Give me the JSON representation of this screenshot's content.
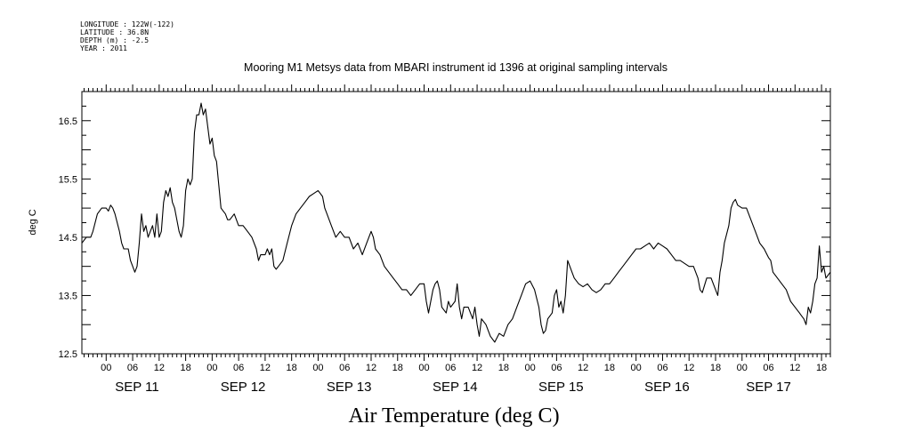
{
  "header": {
    "longitude": "LONGITUDE : 122W(-122)",
    "latitude": "LATITUDE : 36.8N",
    "depth": "DEPTH (m) : -2.5",
    "year": "YEAR : 2011"
  },
  "chart_data": {
    "type": "line",
    "title": "Mooring M1 Metsys data from MBARI instrument id 1396 at original sampling intervals",
    "xlabel": "Air Temperature (deg C)",
    "ylabel": "deg C",
    "ylim": [
      12.5,
      17.0
    ],
    "xlim_hours": [
      -5.5,
      164
    ],
    "yticks": [
      12.5,
      13.5,
      14.5,
      15.5,
      16.5
    ],
    "ytick_labels": [
      "12.5",
      "13.5",
      "14.5",
      "15.5",
      "16.5"
    ],
    "xticks_hours": [
      0,
      6,
      12,
      18,
      24,
      30,
      36,
      42,
      48,
      54,
      60,
      66,
      72,
      78,
      84,
      90,
      96,
      102,
      108,
      114,
      120,
      126,
      132,
      138,
      144,
      150,
      156,
      162
    ],
    "xtick_labels": [
      "00",
      "06",
      "12",
      "18",
      "00",
      "06",
      "12",
      "18",
      "00",
      "06",
      "12",
      "18",
      "00",
      "06",
      "12",
      "18",
      "00",
      "06",
      "12",
      "18",
      "00",
      "06",
      "12",
      "18",
      "00",
      "06",
      "12",
      "18"
    ],
    "day_labels": [
      {
        "hour": 7,
        "text": "SEP 11"
      },
      {
        "hour": 31,
        "text": "SEP 12"
      },
      {
        "hour": 55,
        "text": "SEP 13"
      },
      {
        "hour": 79,
        "text": "SEP 14"
      },
      {
        "hour": 103,
        "text": "SEP 15"
      },
      {
        "hour": 127,
        "text": "SEP 16"
      },
      {
        "hour": 150,
        "text": "SEP 17"
      }
    ],
    "grid": false,
    "series": [
      {
        "color": "#000000",
        "points": [
          [
            -5.5,
            14.4
          ],
          [
            -4.5,
            14.5
          ],
          [
            -3.5,
            14.5
          ],
          [
            -3,
            14.6
          ],
          [
            -2,
            14.9
          ],
          [
            -1,
            15.0
          ],
          [
            0,
            15.0
          ],
          [
            0.5,
            14.95
          ],
          [
            1,
            15.05
          ],
          [
            1.5,
            15.0
          ],
          [
            2,
            14.9
          ],
          [
            3,
            14.6
          ],
          [
            3.5,
            14.4
          ],
          [
            4,
            14.3
          ],
          [
            5,
            14.3
          ],
          [
            5.5,
            14.1
          ],
          [
            6,
            14.0
          ],
          [
            6.5,
            13.9
          ],
          [
            7,
            14.0
          ],
          [
            7.5,
            14.4
          ],
          [
            8,
            14.9
          ],
          [
            8.5,
            14.6
          ],
          [
            9,
            14.7
          ],
          [
            9.5,
            14.5
          ],
          [
            10,
            14.6
          ],
          [
            10.5,
            14.7
          ],
          [
            11,
            14.5
          ],
          [
            11.5,
            14.9
          ],
          [
            12,
            14.5
          ],
          [
            12.5,
            14.6
          ],
          [
            13,
            15.1
          ],
          [
            13.5,
            15.3
          ],
          [
            14,
            15.2
          ],
          [
            14.5,
            15.35
          ],
          [
            15,
            15.1
          ],
          [
            15.5,
            15.0
          ],
          [
            16,
            14.8
          ],
          [
            16.5,
            14.6
          ],
          [
            17,
            14.5
          ],
          [
            17.5,
            14.7
          ],
          [
            18,
            15.3
          ],
          [
            18.5,
            15.5
          ],
          [
            19,
            15.4
          ],
          [
            19.5,
            15.5
          ],
          [
            20,
            16.3
          ],
          [
            20.5,
            16.6
          ],
          [
            21,
            16.6
          ],
          [
            21.5,
            16.8
          ],
          [
            22,
            16.6
          ],
          [
            22.5,
            16.7
          ],
          [
            23,
            16.4
          ],
          [
            23.5,
            16.1
          ],
          [
            24,
            16.2
          ],
          [
            24.5,
            15.9
          ],
          [
            25,
            15.8
          ],
          [
            25.5,
            15.4
          ],
          [
            26,
            15.0
          ],
          [
            26.5,
            14.95
          ],
          [
            27,
            14.9
          ],
          [
            27.5,
            14.8
          ],
          [
            28,
            14.8
          ],
          [
            29,
            14.9
          ],
          [
            30,
            14.7
          ],
          [
            31,
            14.7
          ],
          [
            32,
            14.6
          ],
          [
            33,
            14.5
          ],
          [
            34,
            14.3
          ],
          [
            34.5,
            14.1
          ],
          [
            35,
            14.2
          ],
          [
            36,
            14.2
          ],
          [
            36.5,
            14.3
          ],
          [
            37,
            14.2
          ],
          [
            37.5,
            14.3
          ],
          [
            38,
            14.0
          ],
          [
            38.5,
            13.95
          ],
          [
            39,
            14.0
          ],
          [
            40,
            14.1
          ],
          [
            41,
            14.4
          ],
          [
            42,
            14.7
          ],
          [
            43,
            14.9
          ],
          [
            44,
            15.0
          ],
          [
            45,
            15.1
          ],
          [
            46,
            15.2
          ],
          [
            47,
            15.25
          ],
          [
            48,
            15.3
          ],
          [
            49,
            15.2
          ],
          [
            49.5,
            15.0
          ],
          [
            50,
            14.9
          ],
          [
            51,
            14.7
          ],
          [
            52,
            14.5
          ],
          [
            53,
            14.6
          ],
          [
            54,
            14.5
          ],
          [
            55,
            14.5
          ],
          [
            56,
            14.3
          ],
          [
            57,
            14.4
          ],
          [
            58,
            14.2
          ],
          [
            59,
            14.4
          ],
          [
            60,
            14.6
          ],
          [
            60.5,
            14.5
          ],
          [
            61,
            14.3
          ],
          [
            62,
            14.2
          ],
          [
            63,
            14.0
          ],
          [
            64,
            13.9
          ],
          [
            65,
            13.8
          ],
          [
            66,
            13.7
          ],
          [
            67,
            13.6
          ],
          [
            68,
            13.6
          ],
          [
            69,
            13.5
          ],
          [
            70,
            13.6
          ],
          [
            71,
            13.7
          ],
          [
            72,
            13.7
          ],
          [
            72.5,
            13.4
          ],
          [
            73,
            13.2
          ],
          [
            74,
            13.6
          ],
          [
            74.5,
            13.7
          ],
          [
            75,
            13.75
          ],
          [
            75.5,
            13.6
          ],
          [
            76,
            13.3
          ],
          [
            77,
            13.2
          ],
          [
            77.5,
            13.4
          ],
          [
            78,
            13.3
          ],
          [
            79,
            13.4
          ],
          [
            79.5,
            13.7
          ],
          [
            80,
            13.3
          ],
          [
            80.5,
            13.1
          ],
          [
            81,
            13.3
          ],
          [
            82,
            13.3
          ],
          [
            83,
            13.1
          ],
          [
            83.5,
            13.3
          ],
          [
            84,
            13.0
          ],
          [
            84.5,
            12.8
          ],
          [
            85,
            13.1
          ],
          [
            86,
            13.0
          ],
          [
            87,
            12.8
          ],
          [
            88,
            12.7
          ],
          [
            89,
            12.85
          ],
          [
            90,
            12.8
          ],
          [
            91,
            13.0
          ],
          [
            92,
            13.1
          ],
          [
            93,
            13.3
          ],
          [
            94,
            13.5
          ],
          [
            95,
            13.7
          ],
          [
            96,
            13.75
          ],
          [
            97,
            13.6
          ],
          [
            98,
            13.3
          ],
          [
            98.5,
            13.0
          ],
          [
            99,
            12.85
          ],
          [
            99.5,
            12.9
          ],
          [
            100,
            13.1
          ],
          [
            101,
            13.2
          ],
          [
            101.5,
            13.5
          ],
          [
            102,
            13.6
          ],
          [
            102.5,
            13.3
          ],
          [
            103,
            13.4
          ],
          [
            103.5,
            13.2
          ],
          [
            104,
            13.5
          ],
          [
            104.5,
            14.1
          ],
          [
            105,
            14.0
          ],
          [
            105.5,
            13.9
          ],
          [
            106,
            13.8
          ],
          [
            107,
            13.7
          ],
          [
            108,
            13.65
          ],
          [
            109,
            13.7
          ],
          [
            110,
            13.6
          ],
          [
            111,
            13.55
          ],
          [
            112,
            13.6
          ],
          [
            113,
            13.7
          ],
          [
            114,
            13.7
          ],
          [
            115,
            13.8
          ],
          [
            116,
            13.9
          ],
          [
            117,
            14.0
          ],
          [
            118,
            14.1
          ],
          [
            119,
            14.2
          ],
          [
            120,
            14.3
          ],
          [
            121,
            14.3
          ],
          [
            122,
            14.35
          ],
          [
            123,
            14.4
          ],
          [
            124,
            14.3
          ],
          [
            125,
            14.4
          ],
          [
            126,
            14.35
          ],
          [
            127,
            14.3
          ],
          [
            128,
            14.2
          ],
          [
            129,
            14.1
          ],
          [
            130,
            14.1
          ],
          [
            131,
            14.05
          ],
          [
            132,
            14.0
          ],
          [
            133,
            14.0
          ],
          [
            134,
            13.8
          ],
          [
            134.5,
            13.6
          ],
          [
            135,
            13.55
          ],
          [
            136,
            13.8
          ],
          [
            137,
            13.8
          ],
          [
            138,
            13.6
          ],
          [
            138.5,
            13.5
          ],
          [
            139,
            13.9
          ],
          [
            139.5,
            14.1
          ],
          [
            140,
            14.4
          ],
          [
            141,
            14.7
          ],
          [
            141.5,
            15.0
          ],
          [
            142,
            15.1
          ],
          [
            142.5,
            15.15
          ],
          [
            143,
            15.05
          ],
          [
            144,
            15.0
          ],
          [
            145,
            15.0
          ],
          [
            146,
            14.8
          ],
          [
            147,
            14.6
          ],
          [
            148,
            14.4
          ],
          [
            149,
            14.3
          ],
          [
            150,
            14.15
          ],
          [
            150.5,
            14.1
          ],
          [
            151,
            13.9
          ],
          [
            152,
            13.8
          ],
          [
            153,
            13.7
          ],
          [
            154,
            13.6
          ],
          [
            155,
            13.4
          ],
          [
            156,
            13.3
          ],
          [
            157,
            13.2
          ],
          [
            157.5,
            13.15
          ],
          [
            158,
            13.1
          ],
          [
            158.5,
            13.0
          ],
          [
            159,
            13.3
          ],
          [
            159.5,
            13.2
          ],
          [
            160,
            13.4
          ],
          [
            160.5,
            13.7
          ],
          [
            161,
            13.8
          ],
          [
            161.5,
            14.35
          ],
          [
            162,
            13.9
          ],
          [
            162.5,
            14.0
          ],
          [
            163,
            13.8
          ],
          [
            163.5,
            13.85
          ],
          [
            164,
            13.9
          ]
        ]
      }
    ]
  }
}
